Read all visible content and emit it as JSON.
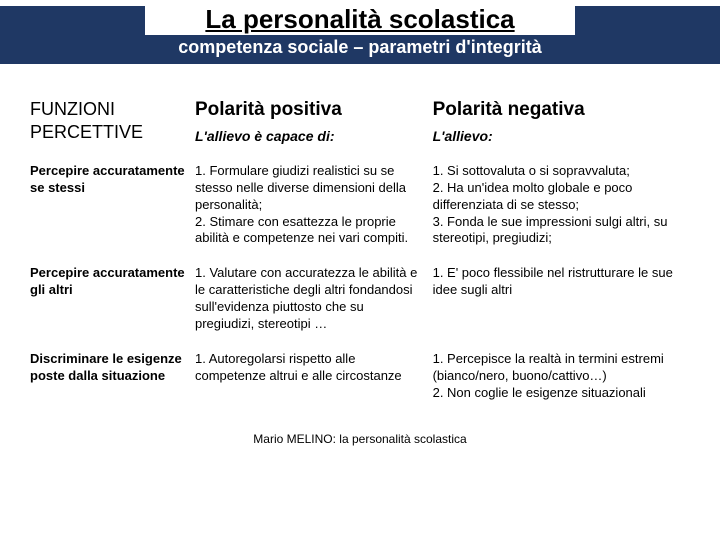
{
  "header": {
    "title": "La personalità scolastica",
    "subtitle": "competenza sociale – parametri d'integrità"
  },
  "table": {
    "head": {
      "c1": "FUNZIONI PERCETTIVE",
      "c2": "Polarità positiva",
      "c2sub": "L'allievo è capace di:",
      "c3": "Polarità negativa",
      "c3sub": "L'allievo:"
    },
    "rows": [
      {
        "c1": "Percepire accuratamente se stessi",
        "c2": "1. Formulare giudizi realistici su se stesso nelle diverse dimensioni della personalità;\n2. Stimare con esattezza le proprie abilità e competenze nei vari compiti.",
        "c3": "1. Si sottovaluta o si sopravvaluta;\n2. Ha un'idea molto globale e poco differenziata di se stesso;\n3. Fonda le sue impressioni sulgi altri, su stereotipi, pregiudizi;"
      },
      {
        "c1": "Percepire accuratamente gli altri",
        "c2": "1. Valutare con accuratezza le abilità e le caratteristiche degli altri fondandosi sull'evidenza piuttosto che su pregiudizi, stereotipi …",
        "c3": "1. E' poco flessibile nel ristrutturare le sue idee sugli altri"
      },
      {
        "c1": "Discriminare le esigenze poste dalla situazione",
        "c2": "1. Autoregolarsi rispetto alle competenze altrui e alle circostanze",
        "c3": "1. Percepisce la realtà in termini estremi (bianco/nero, buono/cattivo…)\n2. Non coglie le esigenze situazionali"
      }
    ]
  },
  "footer": "Mario MELINO: la personalità scolastica"
}
